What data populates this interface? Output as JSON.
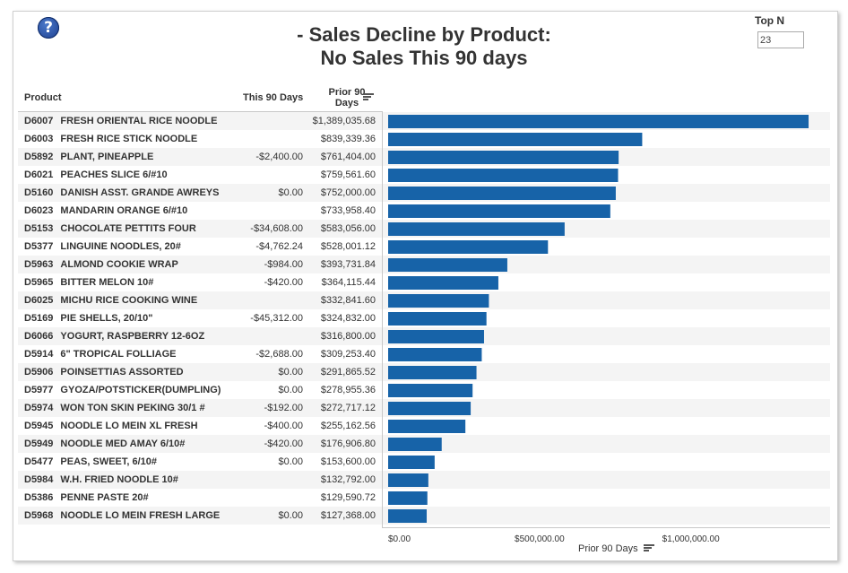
{
  "title_line1": "- Sales Decline by Product:",
  "title_line2": "No Sales This 90 days",
  "help_icon_glyph": "?",
  "topn": {
    "label": "Top N",
    "value": "23"
  },
  "columns": {
    "product": "Product",
    "this90": "This 90 Days",
    "prior90_line1": "Prior 90",
    "prior90_line2": "Days"
  },
  "rows": [
    {
      "code": "D6007",
      "name": "FRESH ORIENTAL RICE NOODLE",
      "this90": "",
      "prior90": "$1,389,035.68"
    },
    {
      "code": "D6003",
      "name": "FRESH RICE STICK NOODLE",
      "this90": "",
      "prior90": "$839,339.36"
    },
    {
      "code": "D5892",
      "name": "PLANT, PINEAPPLE",
      "this90": "-$2,400.00",
      "prior90": "$761,404.00"
    },
    {
      "code": "D6021",
      "name": "PEACHES SLICE 6/#10",
      "this90": "",
      "prior90": "$759,561.60"
    },
    {
      "code": "D5160",
      "name": "DANISH ASST. GRANDE AWREYS",
      "this90": "$0.00",
      "prior90": "$752,000.00"
    },
    {
      "code": "D6023",
      "name": "MANDARIN ORANGE 6/#10",
      "this90": "",
      "prior90": "$733,958.40"
    },
    {
      "code": "D5153",
      "name": "CHOCOLATE PETTITS FOUR",
      "this90": "-$34,608.00",
      "prior90": "$583,056.00"
    },
    {
      "code": "D5377",
      "name": "LINGUINE NOODLES, 20#",
      "this90": "-$4,762.24",
      "prior90": "$528,001.12"
    },
    {
      "code": "D5963",
      "name": "ALMOND COOKIE WRAP",
      "this90": "-$984.00",
      "prior90": "$393,731.84"
    },
    {
      "code": "D5965",
      "name": "BITTER MELON 10#",
      "this90": "-$420.00",
      "prior90": "$364,115.44"
    },
    {
      "code": "D6025",
      "name": "MICHU RICE COOKING WINE",
      "this90": "",
      "prior90": "$332,841.60"
    },
    {
      "code": "D5169",
      "name": "PIE SHELLS, 20/10\"",
      "this90": "-$45,312.00",
      "prior90": "$324,832.00"
    },
    {
      "code": "D6066",
      "name": "YOGURT, RASPBERRY 12-6OZ",
      "this90": "",
      "prior90": "$316,800.00"
    },
    {
      "code": "D5914",
      "name": "6\" TROPICAL FOLLIAGE",
      "this90": "-$2,688.00",
      "prior90": "$309,253.40"
    },
    {
      "code": "D5906",
      "name": "POINSETTIAS ASSORTED",
      "this90": "$0.00",
      "prior90": "$291,865.52"
    },
    {
      "code": "D5977",
      "name": "GYOZA/POTSTICKER(DUMPLING)",
      "this90": "$0.00",
      "prior90": "$278,955.36"
    },
    {
      "code": "D5974",
      "name": "WON TON SKIN PEKING 30/1 #",
      "this90": "-$192.00",
      "prior90": "$272,717.12"
    },
    {
      "code": "D5945",
      "name": "NOODLE LO MEIN XL FRESH",
      "this90": "-$400.00",
      "prior90": "$255,162.56"
    },
    {
      "code": "D5949",
      "name": "NOODLE MED  AMAY 6/10#",
      "this90": "-$420.00",
      "prior90": "$176,906.80"
    },
    {
      "code": "D5477",
      "name": "PEAS, SWEET, 6/10#",
      "this90": "$0.00",
      "prior90": "$153,600.00"
    },
    {
      "code": "D5984",
      "name": "W.H. FRIED NOODLE 10#",
      "this90": "",
      "prior90": "$132,792.00"
    },
    {
      "code": "D5386",
      "name": "PENNE PASTE 20#",
      "this90": "",
      "prior90": "$129,590.72"
    },
    {
      "code": "D5968",
      "name": "NOODLE LO MEIN FRESH LARGE",
      "this90": "$0.00",
      "prior90": "$127,368.00"
    }
  ],
  "chart_data": {
    "type": "bar",
    "orientation": "horizontal",
    "categories": [
      "D6007",
      "D6003",
      "D5892",
      "D6021",
      "D5160",
      "D6023",
      "D5153",
      "D5377",
      "D5963",
      "D5965",
      "D6025",
      "D5169",
      "D6066",
      "D5914",
      "D5906",
      "D5977",
      "D5974",
      "D5945",
      "D5949",
      "D5477",
      "D5984",
      "D5386",
      "D5968"
    ],
    "values": [
      1389035.68,
      839339.36,
      761404.0,
      759561.6,
      752000.0,
      733958.4,
      583056.0,
      528001.12,
      393731.84,
      364115.44,
      332841.6,
      324832.0,
      316800.0,
      309253.4,
      291865.52,
      278955.36,
      272717.12,
      255162.56,
      176906.8,
      153600.0,
      132792.0,
      129590.72,
      127368.0
    ],
    "xlabel": "Prior 90 Days",
    "xlim": [
      0,
      1460000
    ],
    "xticks": [
      0,
      500000,
      1000000
    ],
    "xtick_labels": [
      "$0.00",
      "$500,000.00",
      "$1,000,000.00"
    ],
    "bar_color": "#1763a8",
    "grid": false
  }
}
